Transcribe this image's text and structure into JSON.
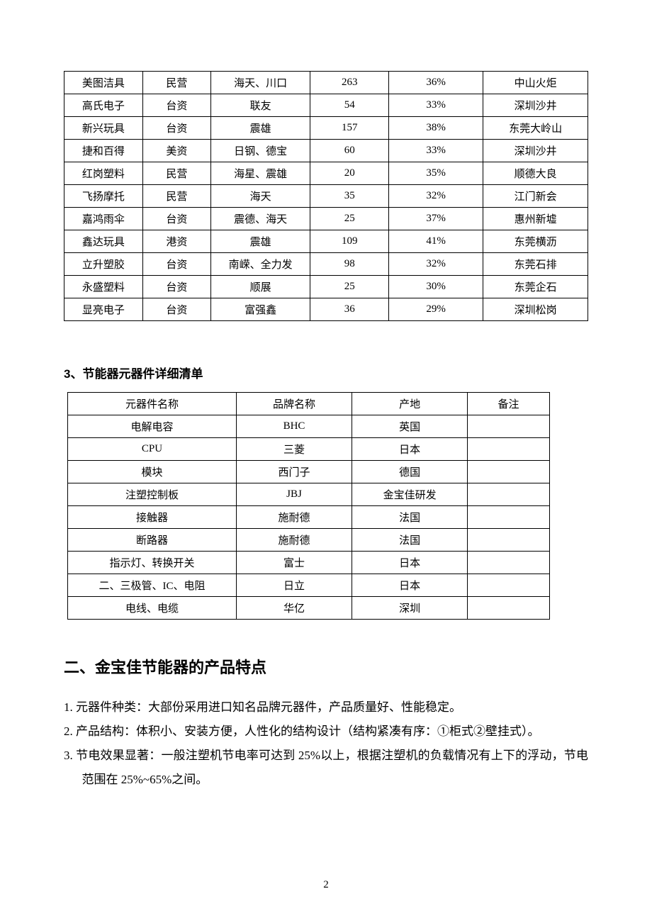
{
  "table1": {
    "rows": [
      [
        "美图洁具",
        "民营",
        "海天、川口",
        "263",
        "36%",
        "中山火炬"
      ],
      [
        "高氏电子",
        "台资",
        "联友",
        "54",
        "33%",
        "深圳沙井"
      ],
      [
        "新兴玩具",
        "台资",
        "震雄",
        "157",
        "38%",
        "东莞大岭山"
      ],
      [
        "捷和百得",
        "美资",
        "日钢、德宝",
        "60",
        "33%",
        "深圳沙井"
      ],
      [
        "红岗塑料",
        "民营",
        "海星、震雄",
        "20",
        "35%",
        "顺德大良"
      ],
      [
        "飞扬摩托",
        "民营",
        "海天",
        "35",
        "32%",
        "江门新会"
      ],
      [
        "嘉鸿雨伞",
        "台资",
        "震德、海天",
        "25",
        "37%",
        "惠州新墟"
      ],
      [
        "鑫达玩具",
        "港资",
        "震雄",
        "109",
        "41%",
        "东莞横沥"
      ],
      [
        "立升塑胶",
        "台资",
        "南嵘、全力发",
        "98",
        "32%",
        "东莞石排"
      ],
      [
        "永盛塑料",
        "台资",
        "顺展",
        "25",
        "30%",
        "东莞企石"
      ],
      [
        "显亮电子",
        "台资",
        "富强鑫",
        "36",
        "29%",
        "深圳松岗"
      ]
    ]
  },
  "section3_title": "3、节能器元器件详细清单",
  "table2": {
    "header": [
      "元器件名称",
      "品牌名称",
      "产地",
      "备注"
    ],
    "rows": [
      [
        "电解电容",
        "BHC",
        "英国",
        ""
      ],
      [
        "CPU",
        "三菱",
        "日本",
        ""
      ],
      [
        "模块",
        "西门子",
        "德国",
        ""
      ],
      [
        "注塑控制板",
        "JBJ",
        "金宝佳研发",
        ""
      ],
      [
        "接触器",
        "施耐德",
        "法国",
        ""
      ],
      [
        "断路器",
        "施耐德",
        "法国",
        ""
      ],
      [
        "指示灯、转换开关",
        "富士",
        "日本",
        ""
      ],
      [
        "二、三极管、IC、电阻",
        "日立",
        "日本",
        ""
      ],
      [
        "电线、电缆",
        "华亿",
        "深圳",
        ""
      ]
    ]
  },
  "heading2": "二、金宝佳节能器的产品特点",
  "body": {
    "item1": "1. 元器件种类：大部份采用进口知名品牌元器件，产品质量好、性能稳定。",
    "item2": "2. 产品结构：体积小、安装方便，人性化的结构设计（结构紧凑有序：①柜式②壁挂式）。",
    "item3": "3. 节电效果显著：一般注塑机节电率可达到 25%以上，根据注塑机的负载情况有上下的浮动，节电范围在 25%~65%之间。"
  },
  "page_number": "2"
}
